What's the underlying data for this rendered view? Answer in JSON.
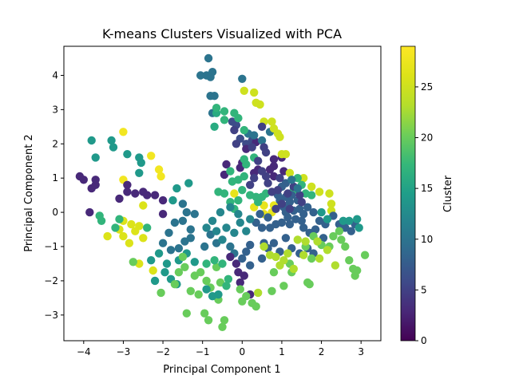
{
  "chart_data": {
    "type": "scatter",
    "title": "K-means Clusters Visualized with PCA",
    "xlabel": "Principal Component 1",
    "ylabel": "Principal Component 2",
    "colorbar_label": "Cluster",
    "xlim": [
      -4.5,
      3.5
    ],
    "ylim": [
      -3.75,
      4.85
    ],
    "xticks": [
      -4,
      -3,
      -2,
      -1,
      0,
      1,
      2,
      3
    ],
    "yticks": [
      -3,
      -2,
      -1,
      0,
      1,
      2,
      3,
      4
    ],
    "colorbar_range": [
      0,
      29
    ],
    "colorbar_ticks": [
      0,
      5,
      10,
      15,
      20,
      25
    ],
    "colormap": "viridis",
    "marker_color_note": "points colored by cluster id (0-29)",
    "points": [
      [
        -4.1,
        1.05,
        3
      ],
      [
        -4.0,
        0.95,
        3
      ],
      [
        -3.8,
        0.7,
        3
      ],
      [
        -3.7,
        0.8,
        3
      ],
      [
        -3.7,
        0.95,
        3
      ],
      [
        -3.85,
        0.0,
        3
      ],
      [
        -3.8,
        2.1,
        14
      ],
      [
        -3.3,
        2.1,
        14
      ],
      [
        -3.25,
        1.9,
        14
      ],
      [
        -3.7,
        1.6,
        14
      ],
      [
        -2.9,
        1.7,
        14
      ],
      [
        -2.6,
        1.6,
        14
      ],
      [
        -2.55,
        1.45,
        14
      ],
      [
        -2.6,
        1.15,
        14
      ],
      [
        -3.0,
        2.35,
        28
      ],
      [
        -2.3,
        1.65,
        28
      ],
      [
        -2.1,
        1.25,
        28
      ],
      [
        -2.05,
        1.05,
        28
      ],
      [
        -3.0,
        0.95,
        28
      ],
      [
        -3.1,
        0.4,
        3
      ],
      [
        -2.9,
        0.8,
        3
      ],
      [
        -2.9,
        0.6,
        3
      ],
      [
        -2.7,
        0.55,
        3
      ],
      [
        -2.5,
        0.6,
        3
      ],
      [
        -2.4,
        0.5,
        3
      ],
      [
        -2.2,
        0.5,
        3
      ],
      [
        -2.0,
        0.35,
        3
      ],
      [
        -2.0,
        -0.05,
        3
      ],
      [
        -2.5,
        0.2,
        26
      ],
      [
        -2.6,
        -0.4,
        26
      ],
      [
        -2.8,
        -0.35,
        26
      ],
      [
        -2.7,
        -0.55,
        26
      ],
      [
        -2.5,
        -0.75,
        26
      ],
      [
        -3.0,
        -0.7,
        26
      ],
      [
        -3.4,
        -0.7,
        26
      ],
      [
        -2.85,
        -0.9,
        26
      ],
      [
        -3.0,
        -0.25,
        26
      ],
      [
        -3.1,
        -0.5,
        26
      ],
      [
        -3.6,
        -0.1,
        17
      ],
      [
        -3.55,
        -0.25,
        17
      ],
      [
        -3.1,
        -0.2,
        17
      ],
      [
        -3.2,
        -0.45,
        17
      ],
      [
        -2.4,
        -0.45,
        17
      ],
      [
        -1.75,
        0.35,
        14
      ],
      [
        -1.65,
        0.7,
        14
      ],
      [
        -1.35,
        0.85,
        14
      ],
      [
        -1.5,
        0.25,
        10
      ],
      [
        -1.4,
        0.0,
        10
      ],
      [
        -1.2,
        -0.05,
        10
      ],
      [
        -1.5,
        -0.25,
        10
      ],
      [
        -1.3,
        -0.5,
        10
      ],
      [
        -1.7,
        -0.3,
        10
      ],
      [
        -1.85,
        -0.6,
        10
      ],
      [
        -2.0,
        -0.9,
        10
      ],
      [
        -1.8,
        -1.1,
        10
      ],
      [
        -1.6,
        -1.05,
        10
      ],
      [
        -1.45,
        -0.85,
        10
      ],
      [
        -1.3,
        -0.75,
        10
      ],
      [
        -2.1,
        -1.2,
        14
      ],
      [
        -2.3,
        -1.4,
        14
      ],
      [
        -1.9,
        -1.5,
        14
      ],
      [
        -1.6,
        -1.4,
        14
      ],
      [
        -1.4,
        -1.2,
        14
      ],
      [
        -1.2,
        -1.45,
        14
      ],
      [
        -1.95,
        -1.75,
        14
      ],
      [
        -1.8,
        -1.95,
        14
      ],
      [
        -2.2,
        -2.0,
        14
      ],
      [
        -1.65,
        -2.1,
        14
      ],
      [
        -2.25,
        -1.7,
        26
      ],
      [
        -2.6,
        -1.5,
        26
      ],
      [
        -2.75,
        -1.45,
        20
      ],
      [
        -1.5,
        -1.3,
        20
      ],
      [
        -1.45,
        -1.6,
        20
      ],
      [
        -1.6,
        -1.75,
        20
      ],
      [
        -1.2,
        -1.85,
        20
      ],
      [
        -1.3,
        -2.3,
        20
      ],
      [
        -1.1,
        -2.4,
        20
      ],
      [
        -1.4,
        -2.95,
        20
      ],
      [
        -0.95,
        -2.95,
        20
      ],
      [
        -0.85,
        -3.15,
        20
      ],
      [
        -0.5,
        -3.35,
        20
      ],
      [
        -0.45,
        -3.15,
        20
      ],
      [
        -0.6,
        -2.55,
        20
      ],
      [
        -0.8,
        -2.2,
        20
      ],
      [
        -0.9,
        -2.0,
        20
      ],
      [
        -1.05,
        -1.75,
        20
      ],
      [
        -0.65,
        -1.6,
        20
      ],
      [
        -0.55,
        -2.05,
        20
      ],
      [
        -2.05,
        -2.35,
        20
      ],
      [
        -1.7,
        -2.1,
        20
      ],
      [
        -0.9,
        -1.5,
        17
      ],
      [
        -0.7,
        -1.4,
        17
      ],
      [
        -0.5,
        -1.5,
        17
      ],
      [
        -0.4,
        -2.15,
        17
      ],
      [
        -0.35,
        -1.95,
        17
      ],
      [
        -0.6,
        -2.4,
        14
      ],
      [
        -0.9,
        -2.25,
        14
      ],
      [
        -0.75,
        -2.45,
        14
      ],
      [
        -0.2,
        -1.2,
        10
      ],
      [
        -0.3,
        -1.0,
        10
      ],
      [
        -0.95,
        -1.0,
        10
      ],
      [
        -0.8,
        -0.65,
        10
      ],
      [
        -0.65,
        -0.9,
        10
      ],
      [
        -0.3,
        -1.3,
        3
      ],
      [
        -0.15,
        -1.5,
        3
      ],
      [
        -0.1,
        -1.75,
        3
      ],
      [
        0.05,
        -1.85,
        3
      ],
      [
        -0.05,
        -2.05,
        3
      ],
      [
        0.2,
        -2.4,
        3
      ],
      [
        0.25,
        -2.65,
        20
      ],
      [
        0.35,
        -2.75,
        20
      ],
      [
        0.0,
        -2.6,
        20
      ],
      [
        0.1,
        -2.45,
        20
      ],
      [
        -0.05,
        -2.25,
        20
      ],
      [
        -0.85,
        4.5,
        10
      ],
      [
        -1.05,
        4.0,
        10
      ],
      [
        -0.9,
        4.0,
        10
      ],
      [
        -0.8,
        3.95,
        10
      ],
      [
        -0.75,
        4.1,
        10
      ],
      [
        -0.8,
        3.4,
        10
      ],
      [
        -0.7,
        3.4,
        10
      ],
      [
        0.0,
        3.9,
        10
      ],
      [
        -0.75,
        2.9,
        10
      ],
      [
        -0.65,
        2.9,
        16
      ],
      [
        -0.7,
        2.5,
        16
      ],
      [
        -0.65,
        3.05,
        17
      ],
      [
        -0.45,
        2.95,
        17
      ],
      [
        -0.25,
        2.65,
        6
      ],
      [
        -0.15,
        2.55,
        6
      ],
      [
        -0.05,
        2.15,
        6
      ],
      [
        0.1,
        2.0,
        6
      ],
      [
        0.25,
        2.1,
        6
      ],
      [
        0.35,
        2.05,
        3
      ],
      [
        0.1,
        1.85,
        3
      ],
      [
        0.15,
        2.3,
        10
      ],
      [
        0.3,
        2.25,
        10
      ],
      [
        0.5,
        2.1,
        10
      ],
      [
        0.7,
        2.35,
        10
      ],
      [
        0.8,
        1.55,
        3
      ],
      [
        1.0,
        1.6,
        3
      ],
      [
        0.8,
        1.35,
        3
      ],
      [
        0.7,
        1.25,
        3
      ],
      [
        0.8,
        1.05,
        3
      ],
      [
        1.05,
        1.2,
        3
      ],
      [
        0.3,
        1.15,
        3
      ],
      [
        0.4,
        1.25,
        3
      ],
      [
        0.0,
        1.45,
        3
      ],
      [
        -0.05,
        1.3,
        3
      ],
      [
        -0.4,
        1.4,
        3
      ],
      [
        -0.45,
        1.1,
        3
      ],
      [
        0.05,
        3.55,
        25
      ],
      [
        0.3,
        3.5,
        25
      ],
      [
        0.35,
        3.2,
        25
      ],
      [
        0.45,
        3.15,
        25
      ],
      [
        0.55,
        2.65,
        25
      ],
      [
        0.75,
        2.65,
        25
      ],
      [
        0.8,
        2.45,
        25
      ],
      [
        0.9,
        2.3,
        25
      ],
      [
        0.95,
        2.2,
        25
      ],
      [
        1.0,
        1.7,
        25
      ],
      [
        1.1,
        1.7,
        25
      ],
      [
        1.2,
        1.15,
        25
      ],
      [
        1.55,
        1.0,
        25
      ],
      [
        1.75,
        0.75,
        25
      ],
      [
        1.95,
        0.6,
        25
      ],
      [
        2.2,
        0.55,
        25
      ],
      [
        2.25,
        0.25,
        25
      ],
      [
        2.25,
        0.05,
        25
      ],
      [
        -0.2,
        0.55,
        27
      ],
      [
        0.55,
        0.2,
        27
      ],
      [
        0.75,
        0.0,
        27
      ],
      [
        0.8,
        0.2,
        27
      ],
      [
        0.55,
        -0.05,
        27
      ],
      [
        0.3,
        0.15,
        27
      ],
      [
        -0.6,
        0.6,
        17
      ],
      [
        -0.45,
        0.55,
        17
      ],
      [
        -0.3,
        0.3,
        17
      ],
      [
        -0.2,
        0.1,
        17
      ],
      [
        -0.1,
        0.35,
        17
      ],
      [
        0.0,
        0.65,
        17
      ],
      [
        0.2,
        0.5,
        17
      ],
      [
        0.35,
        0.45,
        17
      ],
      [
        0.4,
        0.3,
        17
      ],
      [
        0.5,
        0.45,
        17
      ],
      [
        0.6,
        0.55,
        17
      ],
      [
        -0.25,
        0.9,
        17
      ],
      [
        -0.1,
        0.95,
        17
      ],
      [
        0.05,
        1.05,
        17
      ],
      [
        -0.3,
        1.2,
        17
      ],
      [
        0.1,
        1.4,
        17
      ],
      [
        0.3,
        1.6,
        17
      ],
      [
        0.05,
        1.55,
        17
      ],
      [
        -0.45,
        2.7,
        17
      ],
      [
        -0.1,
        2.75,
        17
      ],
      [
        -0.2,
        2.9,
        17
      ],
      [
        0.05,
        2.4,
        17
      ],
      [
        1.4,
        1.0,
        17
      ],
      [
        1.5,
        0.8,
        17
      ],
      [
        1.3,
        0.65,
        17
      ],
      [
        1.6,
        0.55,
        17
      ],
      [
        1.75,
        0.5,
        17
      ],
      [
        1.1,
        0.45,
        8
      ],
      [
        1.2,
        0.3,
        8
      ],
      [
        1.3,
        0.05,
        8
      ],
      [
        1.25,
        0.5,
        8
      ],
      [
        1.1,
        0.85,
        8
      ],
      [
        1.0,
        0.75,
        8
      ],
      [
        1.4,
        0.35,
        8
      ],
      [
        1.45,
        0.1,
        8
      ],
      [
        1.55,
        -0.05,
        8
      ],
      [
        1.65,
        0.15,
        8
      ],
      [
        1.8,
        0.0,
        8
      ],
      [
        0.9,
        0.5,
        8
      ],
      [
        0.95,
        0.35,
        8
      ],
      [
        1.05,
        0.15,
        8
      ],
      [
        1.1,
        0.0,
        8
      ],
      [
        1.15,
        -0.15,
        8
      ],
      [
        0.45,
        -0.05,
        8
      ],
      [
        0.65,
        -0.15,
        8
      ],
      [
        0.35,
        -0.3,
        8
      ],
      [
        0.5,
        -0.45,
        8
      ],
      [
        0.7,
        -0.45,
        8
      ],
      [
        0.85,
        -0.35,
        8
      ],
      [
        1.0,
        -0.3,
        8
      ],
      [
        1.2,
        -0.35,
        8
      ],
      [
        1.35,
        -0.2,
        8
      ],
      [
        1.5,
        -0.25,
        8
      ],
      [
        1.55,
        -0.45,
        8
      ],
      [
        1.7,
        -0.6,
        8
      ],
      [
        1.85,
        -0.5,
        8
      ],
      [
        1.95,
        -0.25,
        8
      ],
      [
        2.1,
        -0.35,
        8
      ],
      [
        2.3,
        -0.1,
        8
      ],
      [
        2.45,
        -0.35,
        8
      ],
      [
        2.6,
        -0.45,
        8
      ],
      [
        2.75,
        -0.55,
        8
      ],
      [
        2.85,
        -0.35,
        8
      ],
      [
        0.2,
        -0.95,
        8
      ],
      [
        0.55,
        -0.9,
        8
      ],
      [
        0.8,
        -0.9,
        8
      ],
      [
        1.1,
        -0.75,
        8
      ],
      [
        1.25,
        -1.05,
        8
      ],
      [
        1.45,
        -1.2,
        8
      ],
      [
        0.65,
        -1.05,
        8
      ],
      [
        0.95,
        -1.15,
        8
      ],
      [
        0.2,
        -1.55,
        8
      ],
      [
        0.5,
        -1.35,
        8
      ],
      [
        0.1,
        -1.15,
        8
      ],
      [
        0.0,
        -1.35,
        8
      ],
      [
        1.65,
        -1.05,
        8
      ],
      [
        1.8,
        -1.2,
        8
      ],
      [
        2.05,
        -0.75,
        8
      ],
      [
        -0.2,
        -0.6,
        12
      ],
      [
        0.1,
        -0.55,
        12
      ],
      [
        -0.05,
        -0.3,
        12
      ],
      [
        0.2,
        -0.2,
        12
      ],
      [
        -0.1,
        -0.05,
        12
      ],
      [
        -0.3,
        0.15,
        12
      ],
      [
        -0.55,
        0.0,
        12
      ],
      [
        -0.4,
        -0.45,
        12
      ],
      [
        -0.65,
        -0.55,
        12
      ],
      [
        -0.9,
        -0.45,
        12
      ],
      [
        -0.75,
        -0.25,
        12
      ],
      [
        -0.5,
        -0.8,
        12
      ],
      [
        2.0,
        0.0,
        14
      ],
      [
        2.15,
        -0.2,
        14
      ],
      [
        2.55,
        -0.25,
        14
      ],
      [
        2.7,
        -0.25,
        14
      ],
      [
        2.9,
        -0.2,
        14
      ],
      [
        2.95,
        -0.45,
        14
      ],
      [
        2.3,
        -0.7,
        20
      ],
      [
        2.5,
        -0.8,
        20
      ],
      [
        2.6,
        -1.0,
        20
      ],
      [
        2.45,
        -0.55,
        20
      ],
      [
        2.7,
        -1.4,
        20
      ],
      [
        2.8,
        -1.65,
        20
      ],
      [
        2.85,
        -1.85,
        20
      ],
      [
        2.9,
        -1.7,
        20
      ],
      [
        3.1,
        -1.25,
        20
      ],
      [
        2.2,
        -1.0,
        20
      ],
      [
        2.0,
        -0.95,
        20
      ],
      [
        1.8,
        -0.7,
        20
      ],
      [
        1.6,
        -1.0,
        20
      ],
      [
        1.75,
        -1.35,
        20
      ],
      [
        1.65,
        -2.05,
        20
      ],
      [
        1.7,
        -2.1,
        20
      ],
      [
        1.2,
        -1.5,
        20
      ],
      [
        1.25,
        -1.75,
        20
      ],
      [
        0.8,
        -1.75,
        20
      ],
      [
        0.75,
        -2.3,
        20
      ],
      [
        1.05,
        -2.15,
        20
      ],
      [
        1.05,
        -1.4,
        23
      ],
      [
        0.85,
        -1.3,
        23
      ],
      [
        0.95,
        -1.55,
        23
      ],
      [
        1.3,
        -1.65,
        23
      ],
      [
        1.55,
        -1.25,
        23
      ],
      [
        2.15,
        -1.1,
        23
      ],
      [
        1.95,
        -1.35,
        23
      ],
      [
        2.35,
        -1.55,
        23
      ],
      [
        0.4,
        -2.35,
        23
      ],
      [
        0.55,
        -1.0,
        23
      ],
      [
        0.7,
        -1.25,
        23
      ],
      [
        1.9,
        -0.85,
        23
      ],
      [
        1.15,
        -1.2,
        23
      ],
      [
        1.4,
        -0.8,
        23
      ],
      [
        1.6,
        -0.85,
        23
      ],
      [
        0.9,
        0.65,
        5
      ],
      [
        1.3,
        0.75,
        5
      ],
      [
        1.45,
        0.5,
        5
      ],
      [
        1.5,
        0.3,
        5
      ],
      [
        1.15,
        0.55,
        5
      ],
      [
        0.95,
        1.0,
        5
      ],
      [
        0.5,
        1.2,
        5
      ],
      [
        0.6,
        1.05,
        5
      ],
      [
        0.2,
        0.8,
        5
      ],
      [
        0.3,
        1.0,
        5
      ],
      [
        0.65,
        0.85,
        5
      ],
      [
        0.75,
        0.6,
        5
      ],
      [
        1.0,
        0.25,
        5
      ],
      [
        1.2,
        0.1,
        5
      ],
      [
        0.85,
        0.1,
        5
      ],
      [
        -0.2,
        2.4,
        5
      ],
      [
        0.5,
        2.5,
        5
      ],
      [
        0.55,
        1.9,
        5
      ],
      [
        0.25,
        1.9,
        5
      ],
      [
        -0.15,
        2.0,
        5
      ],
      [
        0.6,
        1.75,
        5
      ],
      [
        0.4,
        1.5,
        5
      ],
      [
        1.25,
        0.95,
        10
      ],
      [
        1.4,
        0.7,
        10
      ]
    ]
  }
}
